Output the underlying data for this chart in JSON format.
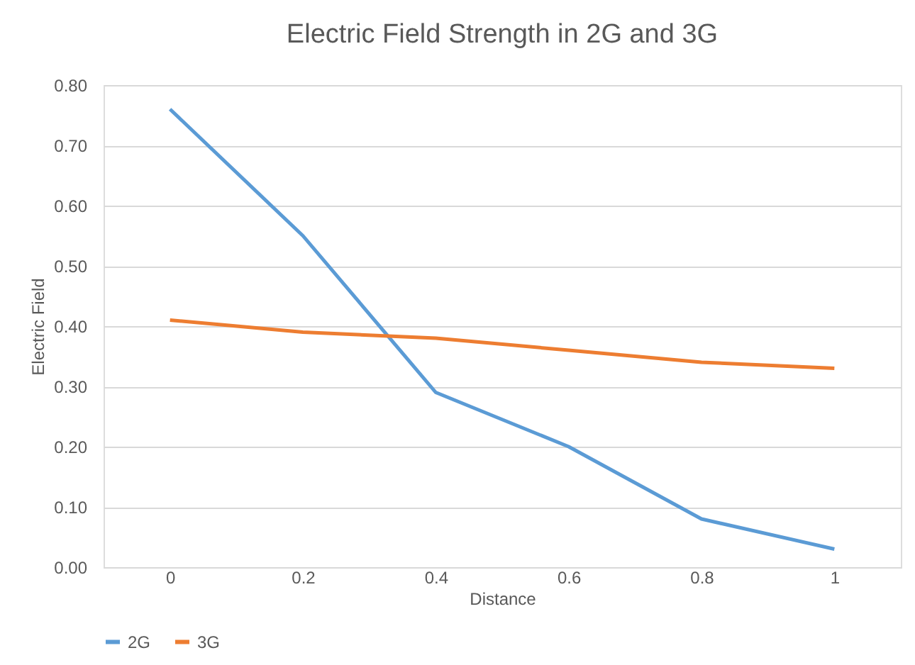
{
  "chart_data": {
    "type": "line",
    "title": "Electric Field Strength in 2G and 3G",
    "xlabel": "Distance",
    "ylabel": "Electric Field",
    "series": [
      {
        "name": "2G",
        "color": "#5b9bd5",
        "x": [
          0,
          0.2,
          0.4,
          0.6,
          0.7,
          0.8,
          1
        ],
        "values": [
          0.76,
          0.55,
          0.29,
          0.2,
          0.14,
          0.08,
          0.03
        ]
      },
      {
        "name": "3G",
        "color": "#ed7d31",
        "x": [
          0,
          0.2,
          0.4,
          0.6,
          0.8,
          1
        ],
        "values": [
          0.41,
          0.39,
          0.38,
          0.36,
          0.34,
          0.33
        ]
      }
    ],
    "xlim": [
      -0.1,
      1.1
    ],
    "xticks": [
      0,
      0.2,
      0.4,
      0.6,
      0.8,
      1
    ],
    "ylim": [
      0,
      0.8
    ],
    "yticks": [
      {
        "value": 0,
        "label": "0.00"
      },
      {
        "value": 0.1,
        "label": "0.10"
      },
      {
        "value": 0.2,
        "label": "0.20"
      },
      {
        "value": 0.3,
        "label": "0.30"
      },
      {
        "value": 0.4,
        "label": "0.40"
      },
      {
        "value": 0.5,
        "label": "0.50"
      },
      {
        "value": 0.6,
        "label": "0.60"
      },
      {
        "value": 0.7,
        "label": "0.70"
      },
      {
        "value": 0.8,
        "label": "0.80"
      }
    ],
    "grid": "y",
    "legend": "bottom",
    "marker": "none",
    "line_style": "solid"
  }
}
